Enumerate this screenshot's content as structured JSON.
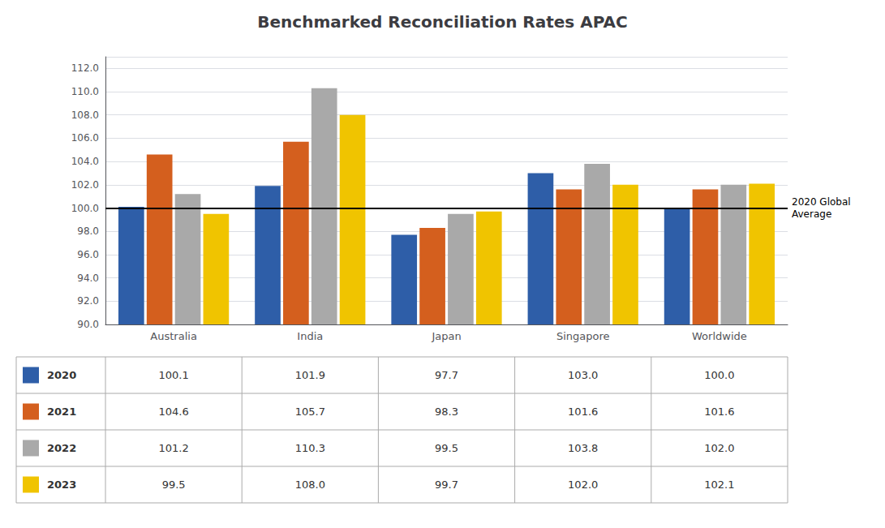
{
  "chart_data": {
    "type": "bar",
    "title": "Benchmarked Reconciliation Rates APAC",
    "categories": [
      "Australia",
      "India",
      "Japan",
      "Singapore",
      "Worldwide"
    ],
    "series": [
      {
        "name": "2020",
        "color": "#2E5EA8",
        "values": [
          100.1,
          101.9,
          97.7,
          103.0,
          100.0
        ],
        "value_labels": [
          "100.1",
          "101.9",
          "97.7",
          "103.0",
          "100.0"
        ]
      },
      {
        "name": "2021",
        "color": "#D45F1E",
        "values": [
          104.6,
          105.7,
          98.3,
          101.6,
          101.6
        ],
        "value_labels": [
          "104.6",
          "105.7",
          "98.3",
          "101.6",
          "101.6"
        ]
      },
      {
        "name": "2022",
        "color": "#A9A9A9",
        "values": [
          101.2,
          110.3,
          99.5,
          103.8,
          102.0
        ],
        "value_labels": [
          "101.2",
          "110.3",
          "99.5",
          "103.8",
          "102.0"
        ]
      },
      {
        "name": "2023",
        "color": "#F0C400",
        "values": [
          99.5,
          108.0,
          99.7,
          102.0,
          102.1
        ],
        "value_labels": [
          "99.5",
          "108.0",
          "99.7",
          "102.0",
          "102.1"
        ]
      }
    ],
    "ylim": [
      90.0,
      113.0
    ],
    "yticks": [
      {
        "value": 90,
        "label": "90.0"
      },
      {
        "value": 92,
        "label": "92.0"
      },
      {
        "value": 94,
        "label": "94.0"
      },
      {
        "value": 96,
        "label": "96.0"
      },
      {
        "value": 98,
        "label": "98.0"
      },
      {
        "value": 100,
        "label": "100.0"
      },
      {
        "value": 102,
        "label": "102.0"
      },
      {
        "value": 104,
        "label": "104.0"
      },
      {
        "value": 106,
        "label": "106.0"
      },
      {
        "value": 108,
        "label": "108.0"
      },
      {
        "value": 110,
        "label": "110.0"
      },
      {
        "value": 112,
        "label": "112.0"
      }
    ],
    "grid": true,
    "annotations": [
      {
        "text": "2020 Global\nAverage",
        "y": 100
      }
    ]
  }
}
